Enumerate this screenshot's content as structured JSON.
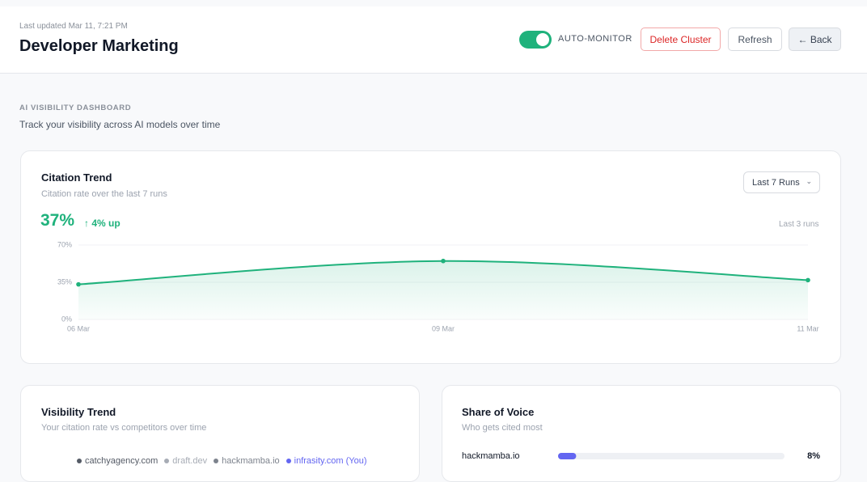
{
  "header": {
    "last_updated": "Last updated Mar 11, 7:21 PM",
    "title": "Developer Marketing",
    "toggle_label": "AUTO-MONITOR",
    "buttons": [
      "Delete Cluster",
      "Refresh",
      "← Back"
    ]
  },
  "intro": {
    "eyebrow": "AI VISIBILITY DASHBOARD",
    "subtitle": "Track your visibility across AI models over time"
  },
  "citation_card": {
    "dropdown": "Last 7 Runs",
    "headline": "37%",
    "change": "↑ 4% up",
    "note": "Last 3 runs"
  },
  "chart_data": [
    {
      "type": "line",
      "title": "Citation Trend",
      "subtitle": "Citation rate over the last 7 runs",
      "categories": [
        "06 Mar",
        "09 Mar",
        "11 Mar"
      ],
      "values": [
        33,
        55,
        37
      ],
      "color": "#1fb27c",
      "ylim": [
        0,
        70
      ],
      "yticks": [
        {
          "value": 0,
          "label": "0%"
        },
        {
          "value": 35,
          "label": "35%"
        },
        {
          "value": 70,
          "label": "70%"
        }
      ],
      "grid": true
    },
    {
      "type": "legend",
      "title": "Visibility Trend",
      "subtitle": "Your citation rate vs competitors over time",
      "series": [
        {
          "name": "catchyagency.com",
          "color": "#555b66"
        },
        {
          "name": "draft.dev",
          "color": "#a7acb5"
        },
        {
          "name": "hackmamba.io",
          "color": "#7d838d"
        },
        {
          "name": "infrasity.com (You)",
          "color": "#6366f1"
        }
      ]
    },
    {
      "type": "hbar",
      "title": "Share of Voice",
      "subtitle": "Who gets cited most",
      "categories": [
        "hackmamba.io"
      ],
      "values": [
        8
      ],
      "value_labels": [
        "8%"
      ],
      "xlim": [
        0,
        100
      ],
      "color": "#6366f1"
    }
  ]
}
